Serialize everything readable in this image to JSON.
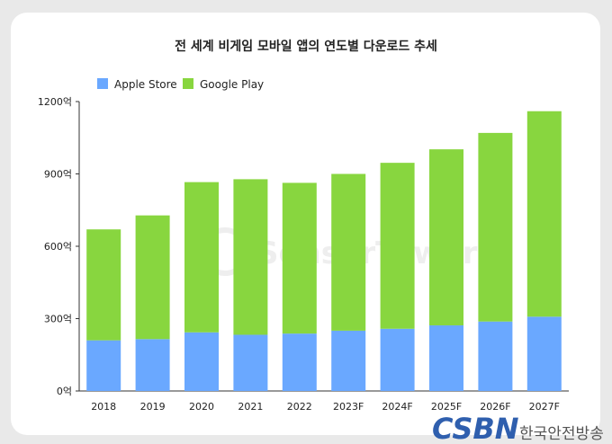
{
  "chart_data": {
    "type": "bar",
    "stacked": true,
    "title": "전 세계 비게임 모바일 앱의 연도별 다운로드 추세",
    "categories": [
      "2018",
      "2019",
      "2020",
      "2021",
      "2022",
      "2023F",
      "2024F",
      "2025F",
      "2026F",
      "2027F"
    ],
    "series": [
      {
        "name": "Apple Store",
        "color": "#6aa8ff",
        "values": [
          210,
          215,
          243,
          233,
          238,
          250,
          258,
          272,
          288,
          308
        ]
      },
      {
        "name": "Google Play",
        "color": "#88d63f",
        "values": [
          460,
          513,
          623,
          645,
          625,
          650,
          688,
          730,
          782,
          852
        ]
      }
    ],
    "ylim": [
      0,
      1200
    ],
    "yticks": [
      0,
      300,
      600,
      900,
      1200
    ],
    "ytick_labels": [
      "0억",
      "300억",
      "600억",
      "900억",
      "1200억"
    ],
    "grid": false,
    "legend_position": "top-left"
  },
  "watermark": "SensorTower",
  "logo": {
    "mark": "CSBN",
    "text": "한국안전방송"
  }
}
